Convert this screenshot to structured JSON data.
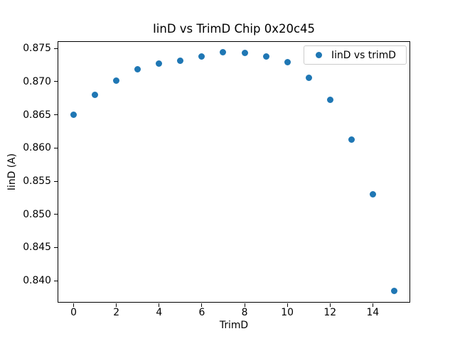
{
  "figure_title": "IinD vs TrimD Chip 0x20c45",
  "chart_data": {
    "type": "scatter",
    "title": "IinD vs TrimD Chip 0x20c45",
    "xlabel": "TrimD",
    "ylabel": "IinD (A)",
    "legend_entries": [
      "IinD vs trimD"
    ],
    "legend_position": "upper right",
    "marker_color": "#1f77b4",
    "text_color": "#000000",
    "x": [
      0,
      1,
      2,
      3,
      4,
      5,
      6,
      7,
      8,
      9,
      10,
      11,
      12,
      13,
      14,
      15
    ],
    "y": [
      0.865,
      0.868,
      0.8702,
      0.8719,
      0.8727,
      0.8732,
      0.8738,
      0.8744,
      0.8743,
      0.8738,
      0.8729,
      0.8706,
      0.8673,
      0.8613,
      0.853,
      0.8385
    ],
    "xlim": [
      -0.75,
      15.75
    ],
    "ylim": [
      0.8367,
      0.8761
    ],
    "xticks": [
      0,
      2,
      4,
      6,
      8,
      10,
      12,
      14
    ],
    "yticks": [
      0.84,
      0.845,
      0.85,
      0.855,
      0.86,
      0.865,
      0.87,
      0.875
    ],
    "ytick_decimals": 3,
    "grid": false
  }
}
